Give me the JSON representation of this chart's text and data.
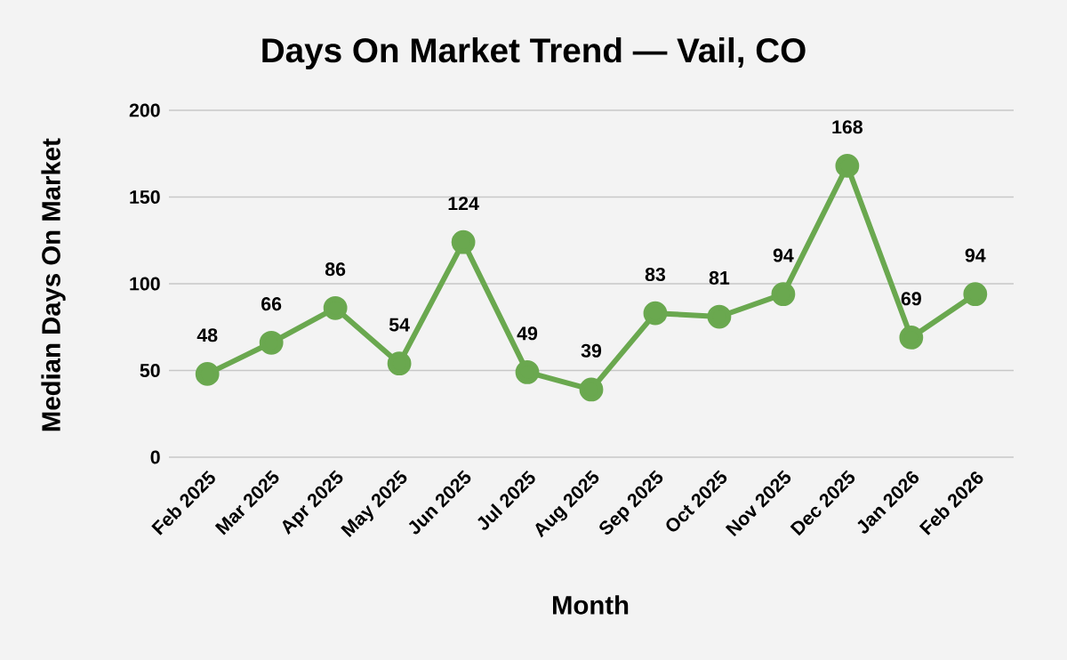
{
  "chart_data": {
    "type": "line",
    "title": "Days On Market Trend — Vail, CO",
    "xlabel": "Month",
    "ylabel": "Median Days On Market",
    "categories": [
      "Feb 2025",
      "Mar 2025",
      "Apr 2025",
      "May 2025",
      "Jun 2025",
      "Jul 2025",
      "Aug 2025",
      "Sep 2025",
      "Oct 2025",
      "Nov 2025",
      "Dec 2025",
      "Jan 2026",
      "Feb 2026"
    ],
    "values": [
      48,
      66,
      86,
      54,
      124,
      49,
      39,
      83,
      81,
      94,
      168,
      69,
      94
    ],
    "color": "#6aa84f",
    "ylim": [
      0,
      200
    ],
    "yticks": [
      0,
      50,
      100,
      150,
      200
    ],
    "grid": "y",
    "marker": "circle",
    "line_style": "solid",
    "data_labels": true
  }
}
